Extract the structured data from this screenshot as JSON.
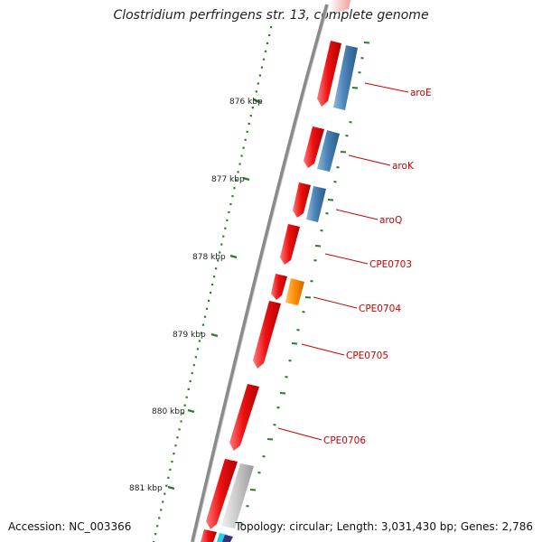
{
  "title": "Clostridium perfringens str. 13, complete genome",
  "accession": "Accession: NC_003366",
  "summary": "Topology: circular; Length: 3,031,430 bp; Genes: 2,786",
  "ruler": {
    "labels": [
      "876 kbp",
      "877 kbp",
      "878 kbp",
      "879 kbp",
      "880 kbp",
      "881 kbp"
    ],
    "color": "#2a7d2a"
  },
  "genes": [
    {
      "name": "aroE",
      "label_color": "#cc0000"
    },
    {
      "name": "aroK",
      "label_color": "#cc0000"
    },
    {
      "name": "aroQ",
      "label_color": "#cc0000"
    },
    {
      "name": "CPE0703",
      "label_color": "#cc0000"
    },
    {
      "name": "CPE0704",
      "label_color": "#cc0000"
    },
    {
      "name": "CPE0705",
      "label_color": "#cc0000"
    },
    {
      "name": "CPE0706",
      "label_color": "#cc0000"
    }
  ],
  "colors": {
    "backbone": "#8a8a8a",
    "gene_forward": "#ee1111",
    "gene_blue": "#4a84b8",
    "gene_orange": "#ff8c00",
    "gene_gray": "#c8c8c8",
    "gene_cyan": "#22d0e8",
    "gene_purple": "#3a2f7a"
  }
}
